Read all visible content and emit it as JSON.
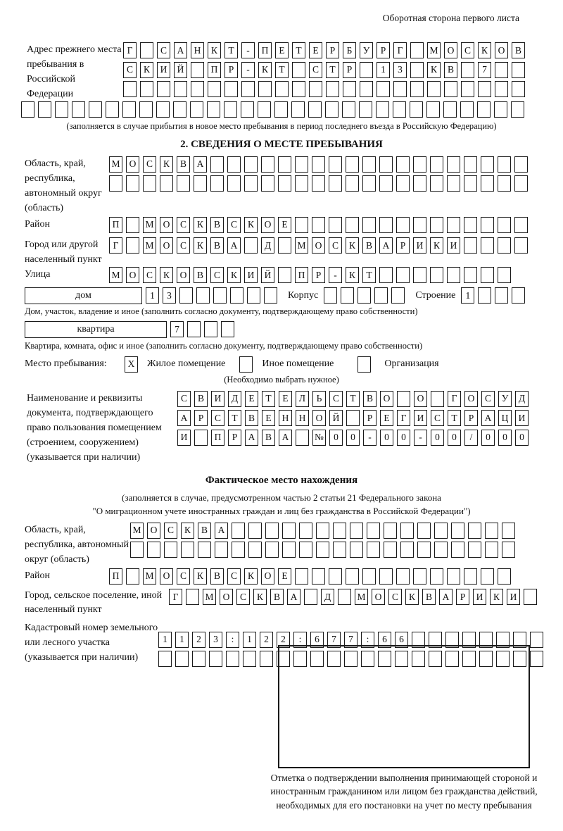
{
  "page": {
    "header_note": "Оборотная сторона первого листа"
  },
  "prev_address": {
    "label": "Адрес прежнего места пребывания в Российской Федерации",
    "rows": [
      {
        "text": "Г САНКТ-ПЕТЕРБУРГ МОСКОВ",
        "count": 24
      },
      {
        "text": "СКИЙ ПР-КТ СТР 13 КВ 7",
        "count": 24
      },
      {
        "text": "",
        "count": 24
      }
    ],
    "row4": {
      "text": "",
      "count": 30
    },
    "caption": "(заполняется в случае прибытия в новое место пребывания в период последнего въезда в Российскую Федерацию)"
  },
  "section2": {
    "title": "2. СВЕДЕНИЯ О МЕСТЕ ПРЕБЫВАНИЯ",
    "oblast": {
      "label": "Область, край, республика, автономный округ (область)",
      "rows": [
        {
          "text": "МОСКВА",
          "count": 25
        },
        {
          "text": "",
          "count": 25
        }
      ]
    },
    "raion": {
      "label": "Район",
      "row": {
        "text": "П МОСКВСКОЕ",
        "count": 25
      }
    },
    "gorod": {
      "label": "Город или другой населенный пункт",
      "row": {
        "text": "Г МОСКВА Д МОСКВАРИКИ",
        "count": 25
      }
    },
    "ulitsa": {
      "label": "Улица",
      "row": {
        "text": "МОСКОВСКИЙ ПР-КТ",
        "count": 24
      }
    },
    "dom": {
      "box_label": "дом",
      "cells": {
        "text": "13",
        "count": 8
      },
      "korpus_label": "Корпус",
      "korpus_cells": {
        "text": "",
        "count": 5
      },
      "stroenie_label": "Строение",
      "stroenie_cells": {
        "text": "1",
        "count": 4
      },
      "caption": "Дом, участок, владение и иное (заполнить согласно документу, подтверждающему право собственности)"
    },
    "kvartira": {
      "box_label": "квартира",
      "cells": {
        "text": "7",
        "count": 4
      },
      "caption": "Квартира, комната, офис и иное (заполнить согласно документу, подтверждающему право собственности)"
    },
    "mesto": {
      "label": "Место пребывания:",
      "options": [
        {
          "checked": {
            "text": "X",
            "count": 1
          },
          "label": "Жилое помещение"
        },
        {
          "checked": {
            "text": "",
            "count": 1
          },
          "label": "Иное помещение"
        },
        {
          "checked": {
            "text": "",
            "count": 1
          },
          "label": "Организация"
        }
      ],
      "note": "(Необходимо выбрать нужное)"
    },
    "doc": {
      "label": "Наименование и реквизиты документа, подтверждающего право пользования помещением (строением, сооружением) (указывается при наличии)",
      "rows": [
        {
          "text": "СВИДЕТЕЛЬСТВО О ГОСУД",
          "count": 21
        },
        {
          "text": "АРСТВЕННОЙ РЕГИСТРАЦИ",
          "count": 21
        },
        {
          "text": "И ПРАВА №00-00-00/000",
          "count": 21
        }
      ]
    }
  },
  "fact": {
    "title": "Фактическое место нахождения",
    "sub1": "(заполняется в случае, предусмотренном частью 2 статьи 21 Федерального закона",
    "sub2": "\"О миграционном учете иностранных граждан и лиц без гражданства в Российской Федерации\")",
    "oblast": {
      "label": "Область, край, республика, автономный округ (область)",
      "rows": [
        {
          "text": "МОСКВА",
          "count": 23
        },
        {
          "text": "",
          "count": 23
        }
      ]
    },
    "raion": {
      "label": "Район",
      "row": {
        "text": "П МОСКВСКОЕ",
        "count": 24
      }
    },
    "gorod": {
      "label": "Город, сельское поселение, иной населенный пункт",
      "row": {
        "text": "Г МОСКВА Д МОСКВАРИКИ",
        "count": 22
      }
    },
    "kadastr": {
      "label": "Кадастровый номер земельного или лесного участка (указывается при наличии)",
      "rows": [
        {
          "text": "1123:122:677:66",
          "count": 23
        },
        {
          "text": "",
          "count": 23
        }
      ]
    }
  },
  "stamp": {
    "caption": "Отметка о подтверждении выполнения принимающей стороной и иностранным гражданином или лицом без гражданства действий, необходимых для его постановки на учет по месту пребывания"
  }
}
